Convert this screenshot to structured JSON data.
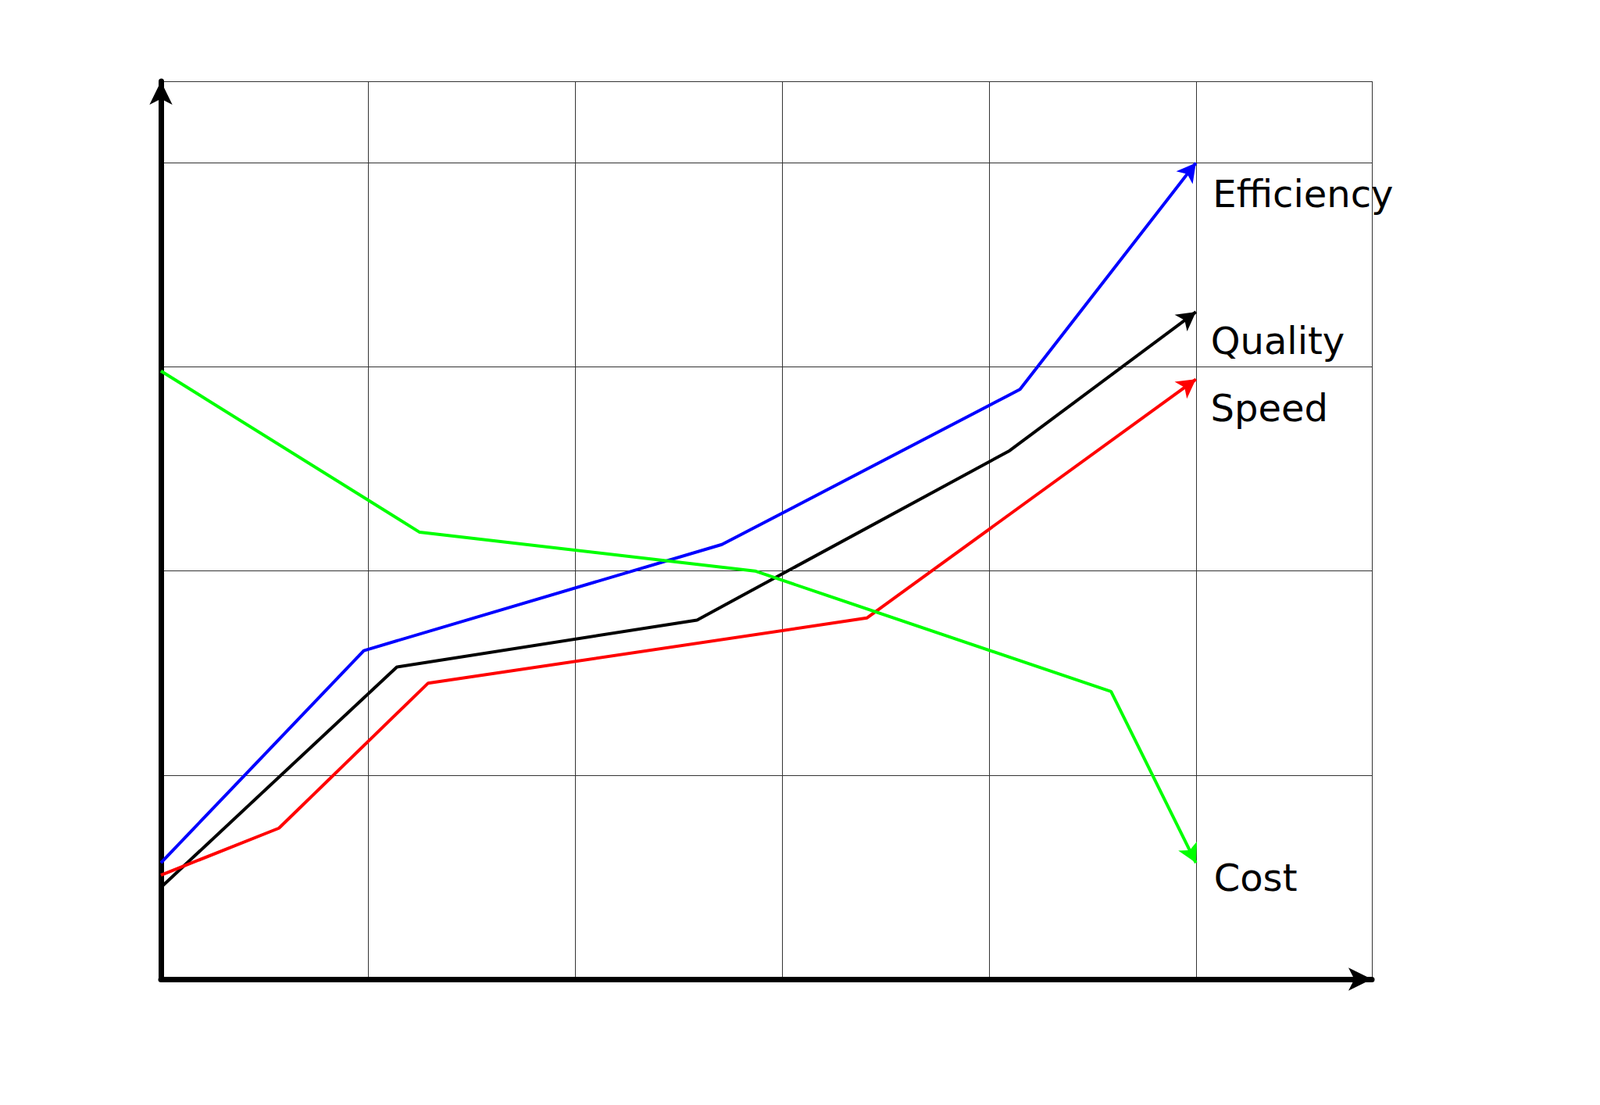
{
  "chart_data": {
    "type": "line",
    "xlim": [
      0,
      5.85
    ],
    "xticks": [
      0,
      1,
      2,
      3,
      4,
      5
    ],
    "ylim": [
      0,
      4.4
    ],
    "yticks": [
      0,
      1,
      2,
      3,
      4
    ],
    "grid": true,
    "tick_labels": false,
    "marker": "arrow",
    "line_style": "solid",
    "series": [
      {
        "name": "Efficiency",
        "color": "#0000ff",
        "x": [
          0,
          0.98,
          2.71,
          4.15,
          5.0
        ],
        "values": [
          0.57,
          1.61,
          2.13,
          2.89,
          4.0
        ]
      },
      {
        "name": "Quality",
        "color": "#000000",
        "x": [
          0,
          1.14,
          2.59,
          4.1,
          5.0
        ],
        "values": [
          0.45,
          1.53,
          1.76,
          2.59,
          3.27
        ]
      },
      {
        "name": "Speed",
        "color": "#ff0000",
        "x": [
          0,
          0.57,
          1.29,
          3.41,
          5.0
        ],
        "values": [
          0.51,
          0.74,
          1.45,
          1.77,
          2.94
        ]
      },
      {
        "name": "Cost",
        "color": "#00ff00",
        "x": [
          0,
          1.25,
          2.87,
          4.59,
          5.0
        ],
        "values": [
          2.98,
          2.19,
          2.0,
          1.41,
          0.57
        ]
      }
    ]
  }
}
